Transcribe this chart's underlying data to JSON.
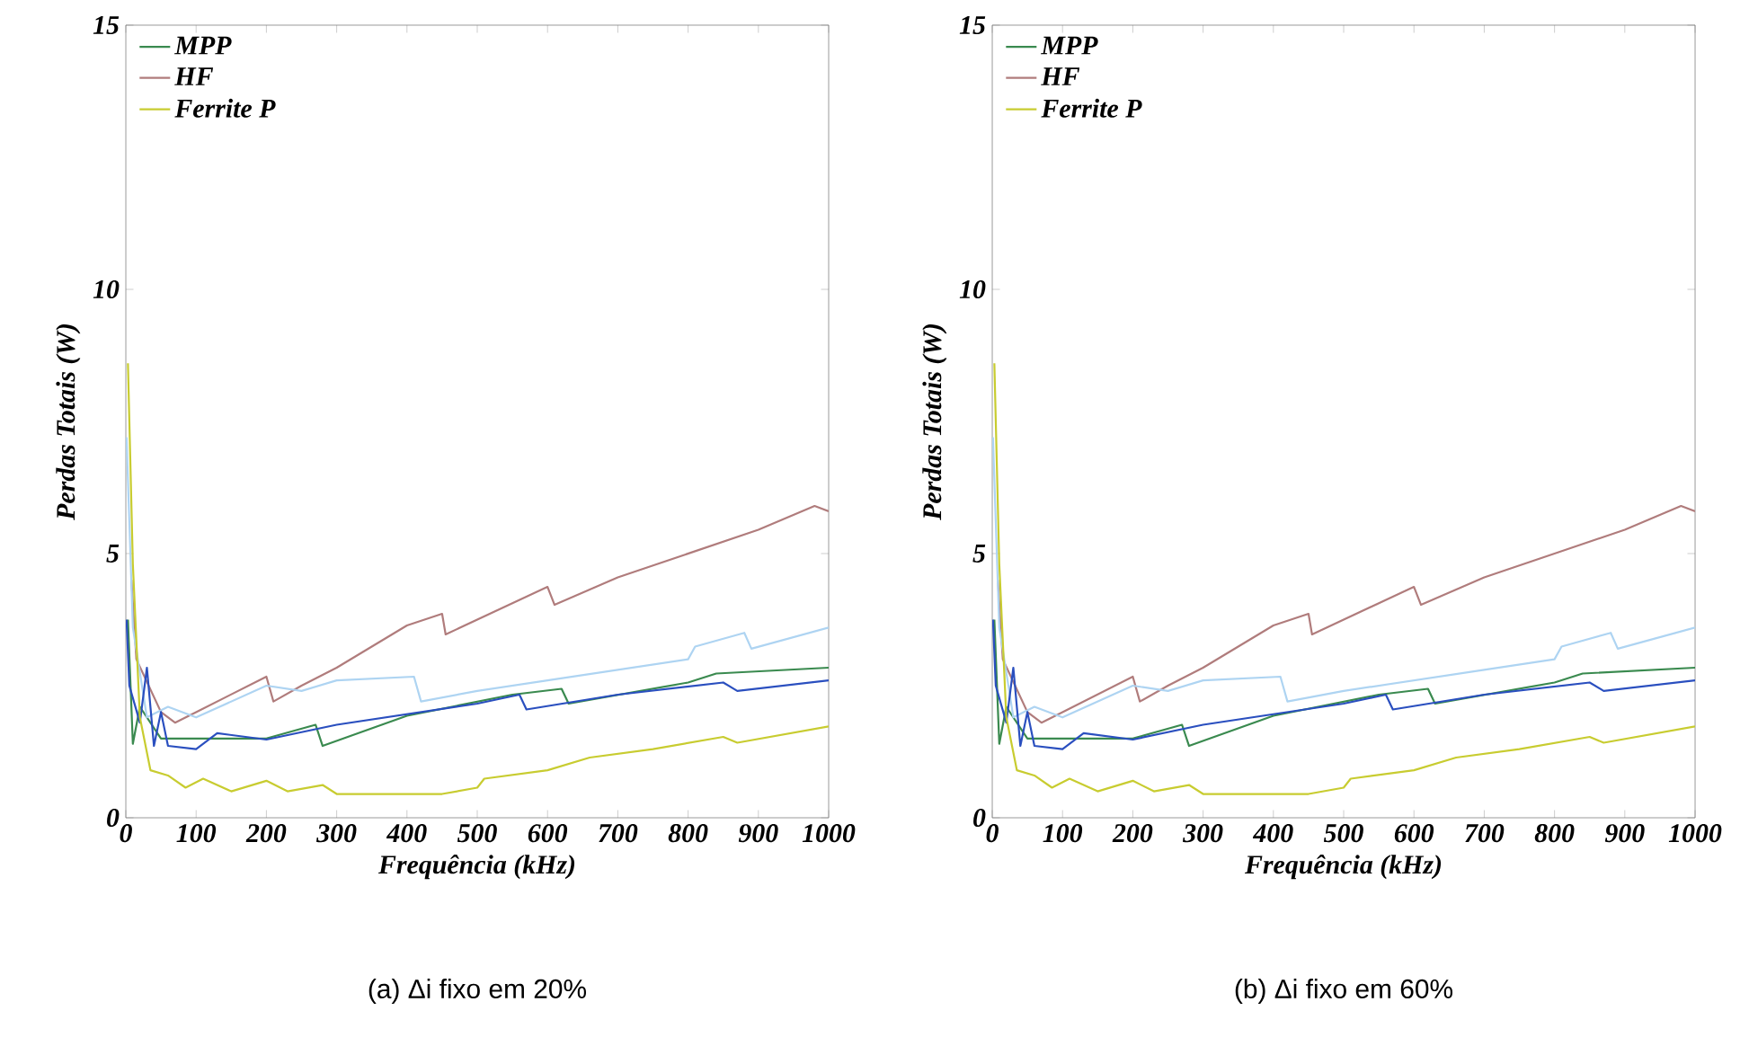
{
  "chart_data": [
    {
      "type": "line",
      "title": "(a) Δi fixo em 20%",
      "xlabel": "Frequência (kHz)",
      "ylabel": "Perdas Totais (W)",
      "xlim": [
        0,
        1000
      ],
      "ylim": [
        0,
        15
      ],
      "xticks": [
        0,
        100,
        200,
        300,
        400,
        500,
        600,
        700,
        800,
        900,
        1000
      ],
      "yticks": [
        0,
        5,
        10,
        15
      ],
      "legend": "top left",
      "series": [
        {
          "name": "MPP",
          "color": "#3a8a4f",
          "x": [
            3,
            10,
            20,
            50,
            80,
            100,
            200,
            270,
            280,
            400,
            550,
            620,
            630,
            800,
            840,
            1000
          ],
          "values": [
            3.75,
            1.4,
            2.1,
            1.5,
            1.5,
            1.5,
            1.5,
            1.76,
            1.36,
            1.93,
            2.33,
            2.44,
            2.16,
            2.56,
            2.73,
            2.84
          ]
        },
        {
          "name": "HF",
          "color": "#b07c7c",
          "x": [
            8,
            15,
            50,
            70,
            100,
            200,
            210,
            250,
            300,
            400,
            450,
            455,
            600,
            610,
            700,
            800,
            900,
            980,
            1000
          ],
          "values": [
            4.5,
            3.0,
            2.0,
            1.8,
            2.0,
            2.67,
            2.2,
            2.5,
            2.84,
            3.64,
            3.86,
            3.47,
            4.37,
            4.03,
            4.55,
            5.0,
            5.45,
            5.9,
            5.8
          ]
        },
        {
          "color": "#aed4f2",
          "x": [
            1,
            10,
            30,
            60,
            100,
            200,
            250,
            300,
            410,
            420,
            500,
            600,
            700,
            800,
            810,
            880,
            890,
            1000
          ],
          "values": [
            7.2,
            3.6,
            1.9,
            2.1,
            1.9,
            2.5,
            2.4,
            2.6,
            2.67,
            2.2,
            2.4,
            2.6,
            2.8,
            3.0,
            3.24,
            3.5,
            3.2,
            3.6
          ]
        },
        {
          "color": "#2a4fbf",
          "x": [
            1,
            5,
            20,
            30,
            40,
            50,
            60,
            100,
            130,
            200,
            300,
            500,
            560,
            570,
            700,
            850,
            870,
            1000
          ],
          "values": [
            3.75,
            2.5,
            1.8,
            2.84,
            1.36,
            2.0,
            1.36,
            1.3,
            1.6,
            1.48,
            1.76,
            2.16,
            2.33,
            2.05,
            2.33,
            2.56,
            2.4,
            2.6
          ]
        },
        {
          "name": "Ferrite P",
          "color": "#c8cc30",
          "x": [
            3,
            10,
            20,
            35,
            60,
            85,
            110,
            150,
            200,
            230,
            280,
            300,
            350,
            450,
            500,
            510,
            600,
            660,
            750,
            850,
            870,
            1000
          ],
          "values": [
            8.6,
            4.8,
            1.9,
            0.9,
            0.8,
            0.57,
            0.74,
            0.5,
            0.7,
            0.5,
            0.62,
            0.45,
            0.45,
            0.45,
            0.57,
            0.74,
            0.9,
            1.14,
            1.3,
            1.53,
            1.42,
            1.73
          ]
        }
      ]
    },
    {
      "type": "line",
      "title": "(b) Δi fixo em 60%",
      "xlabel": "Frequência (kHz)",
      "ylabel": "Perdas Totais (W)",
      "xlim": [
        0,
        1000
      ],
      "ylim": [
        0,
        15
      ],
      "xticks": [
        0,
        100,
        200,
        300,
        400,
        500,
        600,
        700,
        800,
        900,
        1000
      ],
      "yticks": [
        0,
        5,
        10,
        15
      ],
      "legend": "top left",
      "series": [
        {
          "name": "MPP",
          "color": "#3a8a4f",
          "x": [
            3,
            10,
            20,
            50,
            80,
            100,
            200,
            270,
            280,
            400,
            550,
            620,
            630,
            800,
            840,
            1000
          ],
          "values": [
            3.75,
            1.4,
            2.1,
            1.5,
            1.5,
            1.5,
            1.5,
            1.76,
            1.36,
            1.93,
            2.33,
            2.44,
            2.16,
            2.56,
            2.73,
            2.84
          ]
        },
        {
          "name": "HF",
          "color": "#b07c7c",
          "x": [
            8,
            15,
            50,
            70,
            100,
            200,
            210,
            250,
            300,
            400,
            450,
            455,
            600,
            610,
            700,
            800,
            900,
            980,
            1000
          ],
          "values": [
            4.5,
            3.0,
            2.0,
            1.8,
            2.0,
            2.67,
            2.2,
            2.5,
            2.84,
            3.64,
            3.86,
            3.47,
            4.37,
            4.03,
            4.55,
            5.0,
            5.45,
            5.9,
            5.8
          ]
        },
        {
          "color": "#aed4f2",
          "x": [
            1,
            10,
            30,
            60,
            100,
            200,
            250,
            300,
            410,
            420,
            500,
            600,
            700,
            800,
            810,
            880,
            890,
            1000
          ],
          "values": [
            7.2,
            3.6,
            1.9,
            2.1,
            1.9,
            2.5,
            2.4,
            2.6,
            2.67,
            2.2,
            2.4,
            2.6,
            2.8,
            3.0,
            3.24,
            3.5,
            3.2,
            3.6
          ]
        },
        {
          "color": "#2a4fbf",
          "x": [
            1,
            5,
            20,
            30,
            40,
            50,
            60,
            100,
            130,
            200,
            300,
            500,
            560,
            570,
            700,
            850,
            870,
            1000
          ],
          "values": [
            3.75,
            2.5,
            1.8,
            2.84,
            1.36,
            2.0,
            1.36,
            1.3,
            1.6,
            1.48,
            1.76,
            2.16,
            2.33,
            2.05,
            2.33,
            2.56,
            2.4,
            2.6
          ]
        },
        {
          "name": "Ferrite P",
          "color": "#c8cc30",
          "x": [
            3,
            10,
            20,
            35,
            60,
            85,
            110,
            150,
            200,
            230,
            280,
            300,
            350,
            450,
            500,
            510,
            600,
            660,
            750,
            850,
            870,
            1000
          ],
          "values": [
            8.6,
            4.8,
            1.9,
            0.9,
            0.8,
            0.57,
            0.74,
            0.5,
            0.7,
            0.5,
            0.62,
            0.45,
            0.45,
            0.45,
            0.57,
            0.74,
            0.9,
            1.14,
            1.3,
            1.53,
            1.42,
            1.73
          ]
        }
      ]
    }
  ]
}
